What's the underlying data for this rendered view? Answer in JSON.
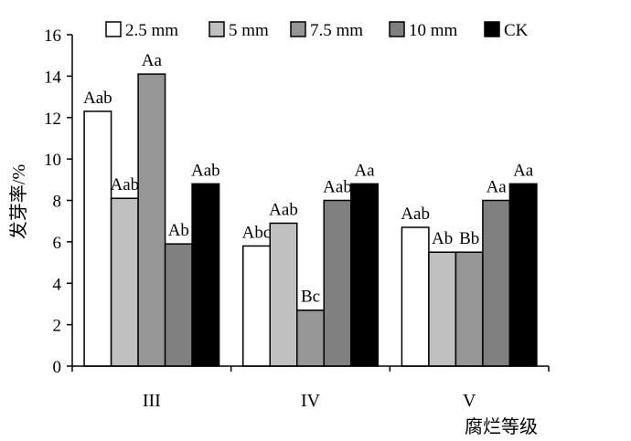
{
  "chart_data": {
    "type": "bar",
    "ylabel": "发芽率/%",
    "xlabel": "腐烂等级",
    "ylim": [
      0,
      16
    ],
    "yticks": [
      "0",
      "2",
      "4",
      "6",
      "8",
      "10",
      "12",
      "14",
      "16"
    ],
    "categories": [
      "III",
      "IV",
      "V"
    ],
    "legend_position": "top",
    "grid": false,
    "series": [
      {
        "name": "2.5 mm",
        "color": "#ffffff",
        "values": [
          12.3,
          5.8,
          6.7
        ],
        "labels": [
          "Aab",
          "Abc",
          "Aab"
        ]
      },
      {
        "name": "5 mm",
        "color": "#c0c0c0",
        "values": [
          8.1,
          6.9,
          5.5
        ],
        "labels": [
          "Aab",
          "Aab",
          "Ab"
        ]
      },
      {
        "name": "7.5 mm",
        "color": "#969696",
        "values": [
          14.1,
          2.7,
          5.5
        ],
        "labels": [
          "Aa",
          "Bc",
          "Bb"
        ]
      },
      {
        "name": "10 mm",
        "color": "#808080",
        "values": [
          5.9,
          8.0,
          8.0
        ],
        "labels": [
          "Ab",
          "Aab",
          "Aa"
        ]
      },
      {
        "name": "CK",
        "color": "#000000",
        "values": [
          8.8,
          8.8,
          8.8
        ],
        "labels": [
          "Aab",
          "Aa",
          "Aa"
        ]
      }
    ]
  }
}
